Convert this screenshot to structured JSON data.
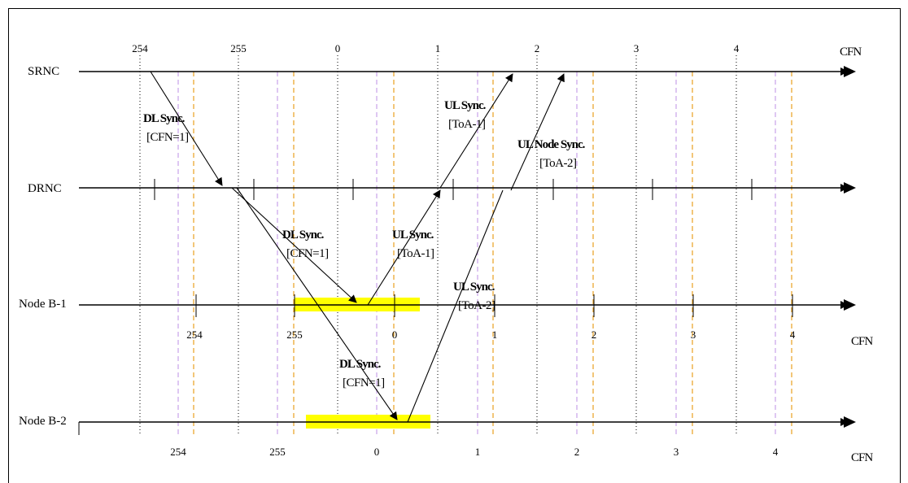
{
  "nodes": {
    "srnc": "SRNC",
    "drnc": "DRNC",
    "nodeb1": "Node B-1",
    "nodeb2": "Node B-2"
  },
  "frame_units": {
    "top": "CFN",
    "nodeb1": "CFN",
    "nodeb2": "CFN"
  },
  "cfn_ticks": {
    "srnc": [
      "254",
      "255",
      "0",
      "1",
      "2",
      "3",
      "4"
    ],
    "nodeb1": [
      "254",
      "255",
      "0",
      "1",
      "2",
      "3",
      "4"
    ],
    "nodeb2": [
      "254",
      "255",
      "0",
      "1",
      "2",
      "3",
      "4"
    ]
  },
  "messages": {
    "dl_srnc_drnc": {
      "title": "DL Sync.",
      "param": "[CFN=1]"
    },
    "ul_drnc_srnc": {
      "title": "UL Sync.",
      "param": "[ToA-1]"
    },
    "ul_node_sync": {
      "title": "UL Node Sync.",
      "param": "[ToA-2]"
    },
    "dl_drnc_nodeb1": {
      "title": "DL Sync.",
      "param": "[CFN=1]"
    },
    "ul_nodeb1_drnc": {
      "title": "UL Sync.",
      "param": "[ToA-1]"
    },
    "ul_nodeb2": {
      "title": "UL Sync.",
      "param": "[ToA-2]"
    },
    "dl_nodeb2": {
      "title": "DL Sync.",
      "param": "[CFN=1]"
    }
  },
  "colors": {
    "line": "#000000",
    "frame_boundary_dotted": "#000000",
    "window_violet": "#c8a2e8",
    "window_orange": "#e8a020",
    "highlight": "#ffff00"
  }
}
